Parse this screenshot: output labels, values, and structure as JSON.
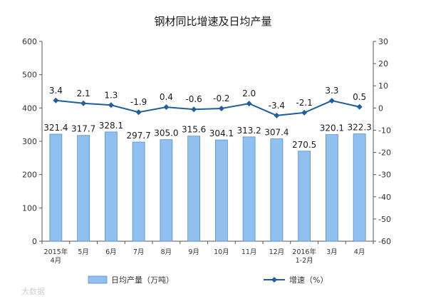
{
  "chart_data": {
    "type": "bar",
    "title": "钢材同比增速及日均产量",
    "categories": [
      [
        "2015年",
        "4月"
      ],
      [
        "5月"
      ],
      [
        "6月"
      ],
      [
        "7月"
      ],
      [
        "8月"
      ],
      [
        "9月"
      ],
      [
        "10月"
      ],
      [
        "11月"
      ],
      [
        "12月"
      ],
      [
        "2016年",
        "1-2月"
      ],
      [
        "3月"
      ],
      [
        "4月"
      ]
    ],
    "series": [
      {
        "name": "日均产量（万吨）",
        "type": "bar",
        "axis": "left",
        "color": "#8fc0ef",
        "values": [
          321.4,
          317.7,
          328.1,
          297.7,
          305.0,
          315.6,
          304.1,
          313.2,
          307.4,
          270.5,
          320.1,
          322.3
        ],
        "labels": [
          "321.4",
          "317.7",
          "328.1",
          "297.7",
          "305.0",
          "315.6",
          "304.1",
          "313.2",
          "307.4",
          "270.5",
          "320.1",
          "322.3"
        ]
      },
      {
        "name": "增速（%）",
        "type": "line",
        "axis": "right",
        "color": "#1f5f9f",
        "marker": "diamond",
        "values": [
          3.4,
          2.1,
          1.3,
          -1.9,
          0.4,
          -0.6,
          -0.2,
          2.0,
          -3.4,
          -2.1,
          3.3,
          0.5
        ],
        "labels": [
          "3.4",
          "2.1",
          "1.3",
          "-1.9",
          "0.4",
          "-0.6",
          "-0.2",
          "2.0",
          "-3.4",
          "-2.1",
          "3.3",
          "0.5"
        ]
      }
    ],
    "y_left": {
      "ylim": [
        0,
        600
      ],
      "ticks": [
        0,
        100,
        200,
        300,
        400,
        500,
        600
      ]
    },
    "y_right": {
      "ylim": [
        -60,
        30
      ],
      "ticks": [
        -60,
        -50,
        -40,
        -30,
        -20,
        -10,
        0,
        10,
        20,
        30
      ]
    },
    "grid": false,
    "legend": "bottom"
  },
  "watermark": "大数据"
}
